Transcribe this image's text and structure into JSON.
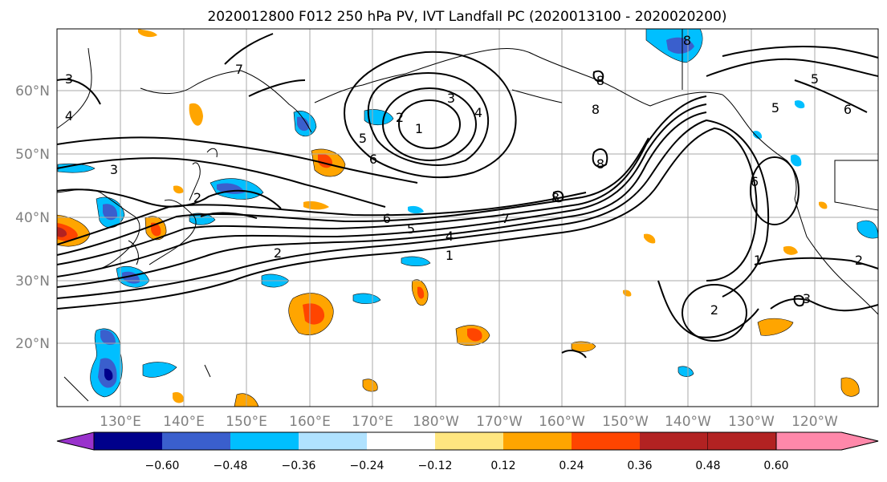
{
  "title": "2020012800 F012 250 hPa PV, IVT Landfall PC (2020013100 - 2020020200)",
  "map": {
    "lat_labels": [
      "60°N",
      "50°N",
      "40°N",
      "30°N",
      "20°N"
    ],
    "lon_labels": [
      "130°E",
      "140°E",
      "150°E",
      "160°E",
      "170°E",
      "180°W",
      "170°W",
      "160°W",
      "150°W",
      "140°W",
      "130°W",
      "120°W"
    ],
    "contour_labels": [
      "1",
      "2",
      "3",
      "4",
      "5",
      "6",
      "7",
      "8"
    ]
  },
  "colorbar": {
    "ticks": [
      "−0.60",
      "−0.48",
      "−0.36",
      "−0.24",
      "−0.12",
      "0.12",
      "0.24",
      "0.36",
      "0.48",
      "0.60"
    ],
    "colors": [
      "#9932cc",
      "#00008b",
      "#3a5fcd",
      "#00bfff",
      "#b0e2ff",
      "#ffffff",
      "#ffe680",
      "#ffa500",
      "#ff4500",
      "#b22222",
      "#ff88aa"
    ]
  },
  "colors": {
    "grid": "#aaaaaa",
    "contour": "#000000",
    "tick_label": "#808080"
  }
}
